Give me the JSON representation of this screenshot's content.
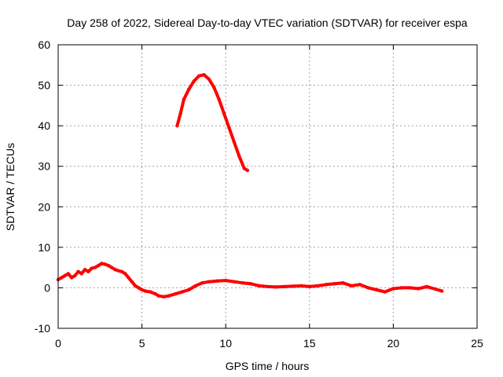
{
  "chart_data": {
    "type": "line",
    "title": "Day 258 of 2022, Sidereal Day-to-day VTEC variation (SDTVAR) for receiver espa",
    "xlabel": "GPS time / hours",
    "ylabel": "SDTVAR / TECUs",
    "xlim": [
      0,
      25
    ],
    "ylim": [
      -10,
      60
    ],
    "xticks": [
      0,
      5,
      10,
      15,
      20,
      25
    ],
    "yticks": [
      -10,
      0,
      10,
      20,
      30,
      40,
      50,
      60
    ],
    "xtick_labels": [
      "0",
      "5",
      "10",
      "15",
      "20",
      "25"
    ],
    "ytick_labels": [
      "-10",
      "0",
      "10",
      "20",
      "30",
      "40",
      "50",
      "60"
    ],
    "grid": true,
    "color": "#ff0000",
    "series": [
      {
        "name": "SDTVAR segment 1",
        "x": [
          0.0,
          0.2,
          0.4,
          0.6,
          0.8,
          1.0,
          1.2,
          1.4,
          1.6,
          1.8,
          2.0,
          2.2,
          2.4,
          2.6,
          2.8,
          3.0,
          3.2,
          3.4,
          3.6,
          3.8,
          4.0,
          4.2,
          4.4,
          4.6,
          4.8,
          5.0,
          5.2,
          5.5,
          5.8,
          6.0,
          6.3,
          6.6,
          7.0,
          7.4,
          7.8,
          8.2,
          8.6,
          9.0,
          9.5,
          10.0,
          10.5,
          11.0,
          11.5,
          12.0,
          12.5,
          13.0,
          13.5,
          14.0,
          14.5,
          15.0,
          15.5,
          16.0,
          16.5,
          17.0,
          17.5,
          18.0,
          18.5,
          19.0,
          19.5,
          20.0,
          20.5,
          21.0,
          21.5,
          22.0,
          22.5,
          22.9
        ],
        "y": [
          2.0,
          2.5,
          3.0,
          3.5,
          2.5,
          3.0,
          4.0,
          3.5,
          4.5,
          4.0,
          4.8,
          5.0,
          5.5,
          6.0,
          5.8,
          5.5,
          5.0,
          4.5,
          4.2,
          4.0,
          3.5,
          2.5,
          1.5,
          0.5,
          0.0,
          -0.5,
          -0.8,
          -1.0,
          -1.5,
          -2.0,
          -2.2,
          -2.0,
          -1.5,
          -1.0,
          -0.5,
          0.5,
          1.2,
          1.5,
          1.7,
          1.8,
          1.5,
          1.2,
          1.0,
          0.5,
          0.3,
          0.2,
          0.3,
          0.4,
          0.5,
          0.3,
          0.5,
          0.8,
          1.0,
          1.2,
          0.5,
          0.8,
          0.0,
          -0.5,
          -1.0,
          -0.2,
          0.0,
          0.0,
          -0.2,
          0.3,
          -0.3,
          -0.8
        ]
      },
      {
        "name": "SDTVAR segment 2",
        "x": [
          7.1,
          7.3,
          7.5,
          7.8,
          8.1,
          8.4,
          8.7,
          9.0,
          9.3,
          9.6,
          9.9,
          10.2,
          10.5,
          10.8,
          11.1,
          11.3
        ],
        "y": [
          40.0,
          43.0,
          46.5,
          49.0,
          51.0,
          52.3,
          52.6,
          51.5,
          49.5,
          46.5,
          43.0,
          39.5,
          36.0,
          32.5,
          29.5,
          29.0
        ]
      }
    ]
  }
}
